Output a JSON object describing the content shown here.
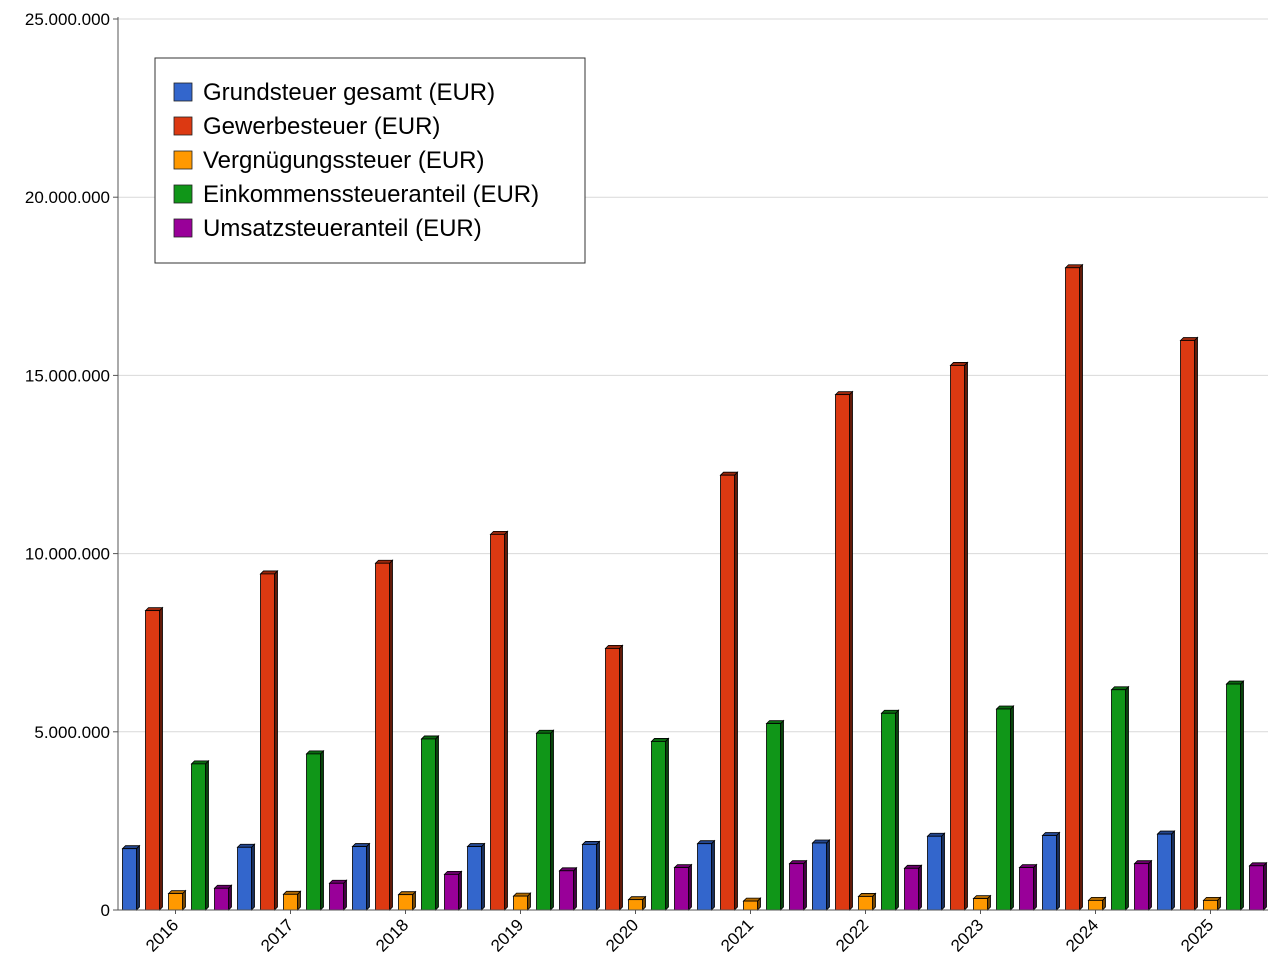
{
  "chart_data": {
    "type": "bar",
    "categories": [
      "2016",
      "2017",
      "2018",
      "2019",
      "2020",
      "2021",
      "2022",
      "2023",
      "2024",
      "2025"
    ],
    "series": [
      {
        "name": "Grundsteuer gesamt (EUR)",
        "color": "#3366cc",
        "values": [
          1720000,
          1760000,
          1780000,
          1780000,
          1840000,
          1860000,
          1880000,
          2070000,
          2090000,
          2130000
        ]
      },
      {
        "name": "Gewerbesteuer (EUR)",
        "color": "#dc3912",
        "values": [
          8400000,
          9430000,
          9730000,
          10540000,
          7340000,
          12200000,
          14460000,
          15280000,
          18020000,
          15980000
        ]
      },
      {
        "name": "Vergnügungssteuer (EUR)",
        "color": "#ff9900",
        "values": [
          460000,
          440000,
          430000,
          390000,
          290000,
          250000,
          380000,
          320000,
          270000,
          270000
        ]
      },
      {
        "name": "Einkommenssteueranteil (EUR)",
        "color": "#109618",
        "values": [
          4100000,
          4380000,
          4800000,
          4960000,
          4730000,
          5230000,
          5520000,
          5640000,
          6180000,
          6340000
        ]
      },
      {
        "name": "Umsatzsteueranteil (EUR)",
        "color": "#990099",
        "values": [
          610000,
          750000,
          1000000,
          1100000,
          1190000,
          1300000,
          1170000,
          1190000,
          1300000,
          1240000
        ]
      }
    ],
    "yticks": [
      "0",
      "5.000.000",
      "10.000.000",
      "15.000.000",
      "20.000.000",
      "25.000.000"
    ],
    "ylim": [
      0,
      25000000
    ],
    "title": "",
    "xlabel": "",
    "ylabel": "",
    "grid": true,
    "legend_position": "top-left"
  }
}
